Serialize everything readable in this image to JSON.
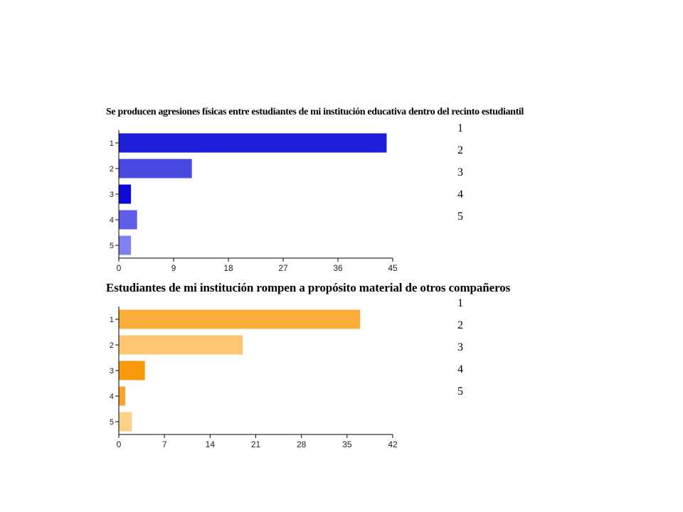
{
  "chart_data": [
    {
      "type": "bar",
      "orientation": "horizontal",
      "title": "Se producen agresiones físicas entre estudiantes de mi institución educativa dentro del recinto estudiantil",
      "categories": [
        "1",
        "2",
        "3",
        "4",
        "5"
      ],
      "values": [
        44,
        12,
        2,
        3,
        2
      ],
      "bar_colors": [
        "#1f1fd9",
        "#4a4ae3",
        "#0b0bd4",
        "#5e5ee8",
        "#8080ee"
      ],
      "xlim": [
        0,
        45
      ],
      "xticks": [
        0,
        9,
        18,
        27,
        36,
        45
      ],
      "legend": [
        "1",
        "2",
        "3",
        "4",
        "5"
      ],
      "legend_position": "right"
    },
    {
      "type": "bar",
      "orientation": "horizontal",
      "title": "Estudiantes de mi institución rompen a propósito material de otros compañeros",
      "categories": [
        "1",
        "2",
        "3",
        "4",
        "5"
      ],
      "values": [
        37,
        19,
        4,
        1,
        2
      ],
      "bar_colors": [
        "#fbad3c",
        "#fdc670",
        "#f99a0d",
        "#fba42c",
        "#fdd088"
      ],
      "xlim": [
        0,
        42
      ],
      "xticks": [
        0,
        7,
        14,
        21,
        28,
        35,
        42
      ],
      "legend": [
        "1",
        "2",
        "3",
        "4",
        "5"
      ],
      "legend_position": "right"
    }
  ]
}
